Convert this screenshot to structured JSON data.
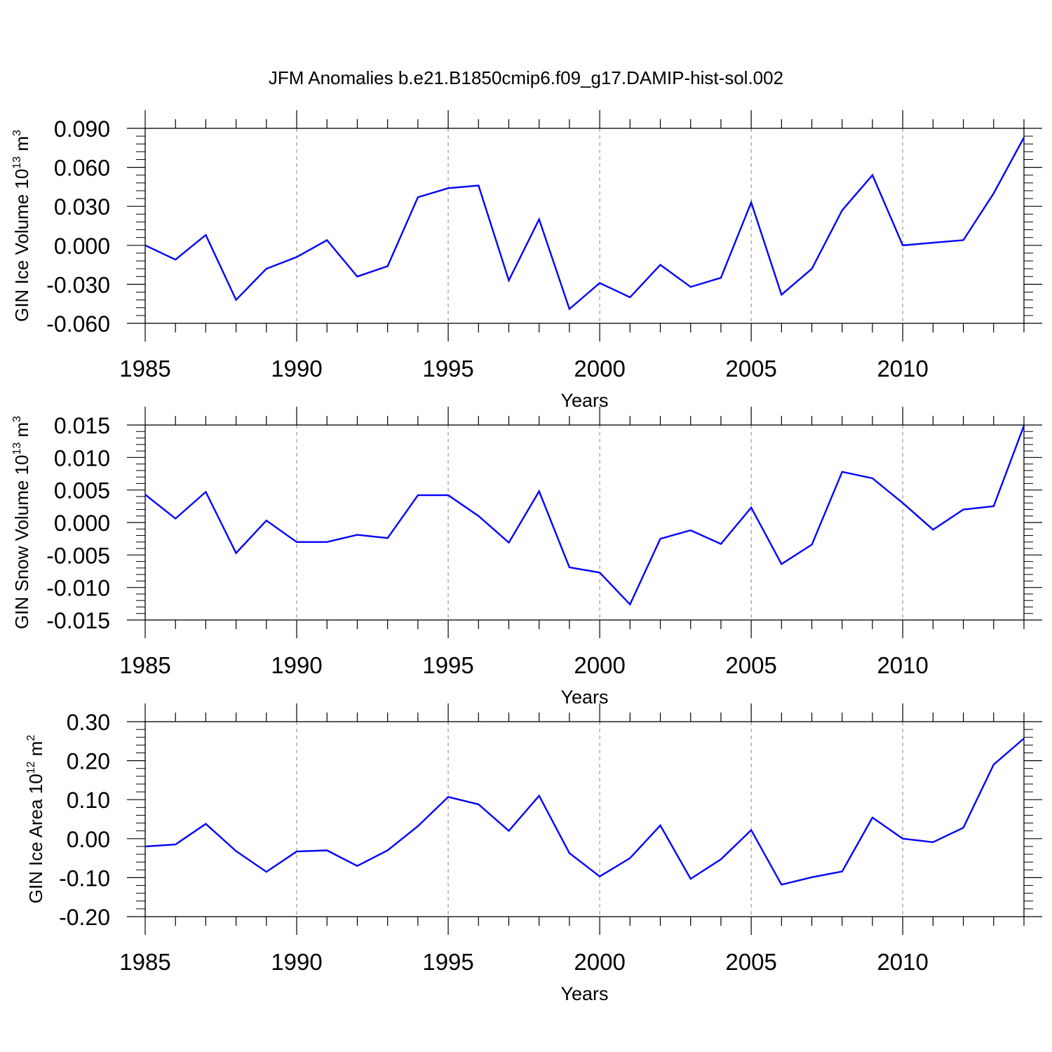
{
  "title": "JFM Anomalies b.e21.B1850cmip6.f09_g17.DAMIP-hist-sol.002",
  "line_color": "#0000ff",
  "chart_data": [
    {
      "type": "line",
      "ylabel": "GIN Ice Volume 10",
      "ylabel_exp": "13",
      "ylabel_unit": " m",
      "ylabel_unit_exp": "3",
      "xlabel": "Years",
      "xlim": [
        1985,
        2014
      ],
      "ylim": [
        -0.06,
        0.09
      ],
      "yticks": [
        -0.06,
        -0.03,
        0.0,
        0.03,
        0.06,
        0.09
      ],
      "ytick_labels": [
        "-0.060",
        "-0.030",
        "0.000",
        "0.030",
        "0.060",
        "0.090"
      ],
      "xticks": [
        1985,
        1990,
        1995,
        2000,
        2005,
        2010
      ],
      "xtick_labels": [
        "1985",
        "1990",
        "1995",
        "2000",
        "2005",
        "2010"
      ],
      "x": [
        1985,
        1986,
        1987,
        1988,
        1989,
        1990,
        1991,
        1992,
        1993,
        1994,
        1995,
        1996,
        1997,
        1998,
        1999,
        2000,
        2001,
        2002,
        2003,
        2004,
        2005,
        2006,
        2007,
        2008,
        2009,
        2010,
        2011,
        2012,
        2013,
        2014
      ],
      "values": [
        0.0,
        -0.011,
        0.008,
        -0.042,
        -0.018,
        -0.009,
        0.004,
        -0.024,
        -0.016,
        0.037,
        0.044,
        0.046,
        -0.027,
        0.02,
        -0.049,
        -0.029,
        -0.04,
        -0.015,
        -0.032,
        -0.025,
        0.033,
        -0.038,
        -0.018,
        0.027,
        0.054,
        0.0,
        0.002,
        0.004,
        0.04,
        0.083
      ]
    },
    {
      "type": "line",
      "ylabel": "GIN Snow Volume 10",
      "ylabel_exp": "13",
      "ylabel_unit": " m",
      "ylabel_unit_exp": "3",
      "xlabel": "Years",
      "xlim": [
        1985,
        2014
      ],
      "ylim": [
        -0.015,
        0.015
      ],
      "yticks": [
        -0.015,
        -0.01,
        -0.005,
        0.0,
        0.005,
        0.01,
        0.015
      ],
      "ytick_labels": [
        "-0.015",
        "-0.010",
        "-0.005",
        "0.000",
        "0.005",
        "0.010",
        "0.015"
      ],
      "xticks": [
        1985,
        1990,
        1995,
        2000,
        2005,
        2010
      ],
      "xtick_labels": [
        "1985",
        "1990",
        "1995",
        "2000",
        "2005",
        "2010"
      ],
      "x": [
        1985,
        1986,
        1987,
        1988,
        1989,
        1990,
        1991,
        1992,
        1993,
        1994,
        1995,
        1996,
        1997,
        1998,
        1999,
        2000,
        2001,
        2002,
        2003,
        2004,
        2005,
        2006,
        2007,
        2008,
        2009,
        2010,
        2011,
        2012,
        2013,
        2014
      ],
      "values": [
        0.0043,
        0.0006,
        0.0047,
        -0.0047,
        0.0003,
        -0.003,
        -0.003,
        -0.0019,
        -0.0024,
        0.0042,
        0.0042,
        0.001,
        -0.0031,
        0.0048,
        -0.0069,
        -0.0077,
        -0.0126,
        -0.0025,
        -0.0012,
        -0.0033,
        0.0023,
        -0.0064,
        -0.0034,
        0.0078,
        0.0068,
        0.003,
        -0.0011,
        0.002,
        0.0025,
        0.0149
      ]
    },
    {
      "type": "line",
      "ylabel": "GIN Ice Area 10",
      "ylabel_exp": "12",
      "ylabel_unit": " m",
      "ylabel_unit_exp": "2",
      "xlabel": "Years",
      "xlim": [
        1985,
        2014
      ],
      "ylim": [
        -0.2,
        0.3
      ],
      "yticks": [
        -0.2,
        -0.1,
        0.0,
        0.1,
        0.2,
        0.3
      ],
      "ytick_labels": [
        "-0.20",
        "-0.10",
        "0.00",
        "0.10",
        "0.20",
        "0.30"
      ],
      "xticks": [
        1985,
        1990,
        1995,
        2000,
        2005,
        2010
      ],
      "xtick_labels": [
        "1985",
        "1990",
        "1995",
        "2000",
        "2005",
        "2010"
      ],
      "x": [
        1985,
        1986,
        1987,
        1988,
        1989,
        1990,
        1991,
        1992,
        1993,
        1994,
        1995,
        1996,
        1997,
        1998,
        1999,
        2000,
        2001,
        2002,
        2003,
        2004,
        2005,
        2006,
        2007,
        2008,
        2009,
        2010,
        2011,
        2012,
        2013,
        2014
      ],
      "values": [
        -0.02,
        -0.015,
        0.038,
        -0.032,
        -0.085,
        -0.033,
        -0.03,
        -0.07,
        -0.03,
        0.032,
        0.107,
        0.088,
        0.02,
        0.11,
        -0.037,
        -0.097,
        -0.05,
        0.034,
        -0.103,
        -0.053,
        0.022,
        -0.118,
        -0.099,
        -0.084,
        0.054,
        0.0,
        -0.009,
        0.028,
        0.19,
        0.257
      ]
    }
  ]
}
